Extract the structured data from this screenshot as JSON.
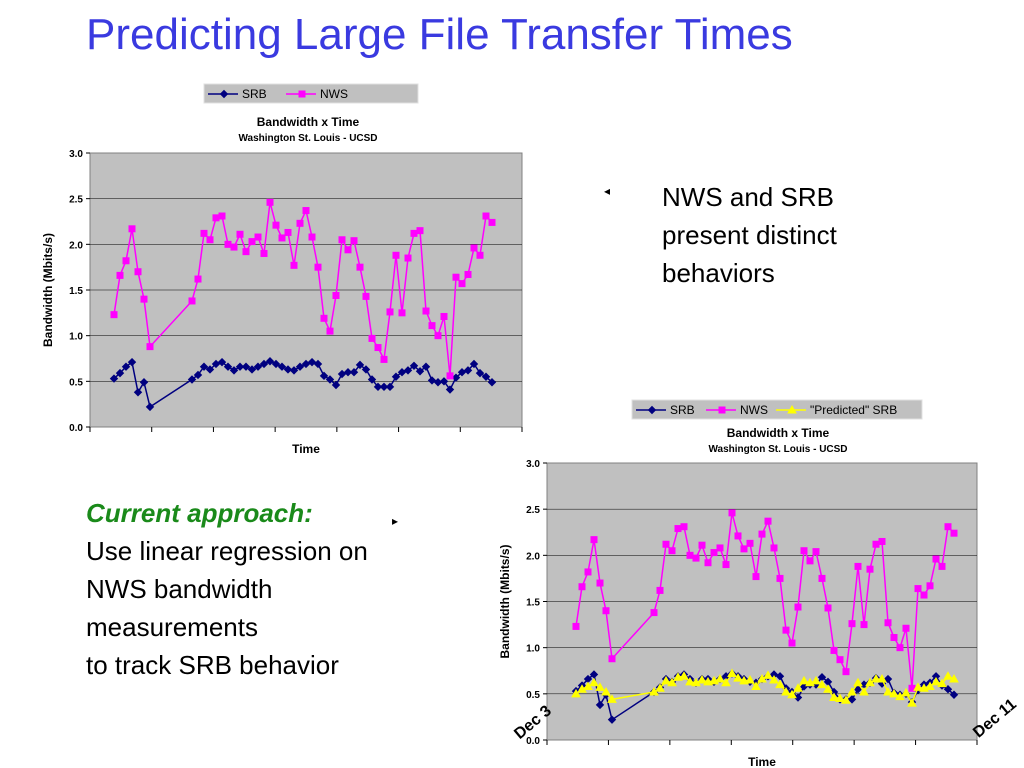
{
  "slide": {
    "title": "Predicting Large File Transfer Times",
    "right_bullet": "NWS and SRB present distinct behaviors",
    "current_approach_label": "Current approach:",
    "current_approach_lines": [
      "Use linear regression on",
      "NWS bandwidth",
      "measurements",
      "to track SRB behavior"
    ],
    "date_start": "Dec 3",
    "date_end": "Dec 11",
    "bullet_marker_right": "◂",
    "bullet_marker_left": "▸"
  },
  "colors": {
    "title": "#3a3ae0",
    "srb": "#000080",
    "nws": "#ff00ff",
    "predicted": "#ffff00",
    "plot_bg": "#c0c0c0",
    "heading_green": "#1a8a1a"
  },
  "chart_data": [
    {
      "type": "line",
      "title": "Bandwidth x Time",
      "subtitle": "Washington St. Louis - UCSD",
      "xlabel": "Time",
      "ylabel": "Bandwidth (Mbits/s)",
      "ylim": [
        0,
        3
      ],
      "yticks": [
        "0.0",
        "0.5",
        "1.0",
        "1.5",
        "2.0",
        "2.5",
        "3.0"
      ],
      "grid": true,
      "legend": "top",
      "series": [
        {
          "name": "SRB",
          "color": "#000080",
          "marker": "diamond",
          "x": [
            0,
            1,
            2,
            3,
            4,
            5,
            6,
            13,
            14,
            15,
            16,
            17,
            18,
            19,
            20,
            21,
            22,
            23,
            24,
            25,
            26,
            27,
            28,
            29,
            30,
            31,
            32,
            33,
            34,
            35,
            36,
            37,
            38,
            39,
            40,
            41,
            42,
            43,
            44,
            45,
            46,
            47,
            48,
            49,
            50,
            51,
            52,
            53,
            54,
            55,
            56,
            57,
            58,
            59,
            60,
            61,
            62,
            63
          ],
          "values": [
            0.53,
            0.59,
            0.66,
            0.71,
            0.38,
            0.49,
            0.22,
            0.52,
            0.57,
            0.66,
            0.63,
            0.69,
            0.71,
            0.66,
            0.62,
            0.66,
            0.66,
            0.63,
            0.66,
            0.69,
            0.72,
            0.69,
            0.66,
            0.63,
            0.62,
            0.66,
            0.69,
            0.71,
            0.69,
            0.56,
            0.52,
            0.46,
            0.58,
            0.6,
            0.6,
            0.68,
            0.63,
            0.52,
            0.44,
            0.44,
            0.44,
            0.55,
            0.6,
            0.62,
            0.67,
            0.61,
            0.66,
            0.51,
            0.49,
            0.5,
            0.41,
            0.54,
            0.6,
            0.62,
            0.69,
            0.59,
            0.55,
            0.49
          ]
        },
        {
          "name": "NWS",
          "color": "#ff00ff",
          "marker": "square",
          "x": [
            0,
            1,
            2,
            3,
            4,
            5,
            6,
            13,
            14,
            15,
            16,
            17,
            18,
            19,
            20,
            21,
            22,
            23,
            24,
            25,
            26,
            27,
            28,
            29,
            30,
            31,
            32,
            33,
            34,
            35,
            36,
            37,
            38,
            39,
            40,
            41,
            42,
            43,
            44,
            45,
            46,
            47,
            48,
            49,
            50,
            51,
            52,
            53,
            54,
            55,
            56,
            57,
            58,
            59,
            60,
            61,
            62,
            63
          ],
          "values": [
            1.23,
            1.66,
            1.82,
            2.17,
            1.7,
            1.4,
            0.88,
            1.38,
            1.62,
            2.12,
            2.05,
            2.29,
            2.31,
            2.0,
            1.97,
            2.11,
            1.92,
            2.03,
            2.08,
            1.9,
            2.46,
            2.21,
            2.07,
            2.13,
            1.77,
            2.23,
            2.37,
            2.08,
            1.75,
            1.19,
            1.05,
            1.44,
            2.05,
            1.94,
            2.04,
            1.75,
            1.43,
            0.97,
            0.87,
            0.74,
            1.26,
            1.88,
            1.25,
            1.85,
            2.12,
            2.15,
            1.27,
            1.11,
            1.0,
            1.21,
            0.56,
            1.64,
            1.57,
            1.67,
            1.96,
            1.88,
            2.31,
            2.24
          ]
        }
      ]
    },
    {
      "type": "line",
      "title": "Bandwidth x Time",
      "subtitle": "Washington St. Louis - UCSD",
      "xlabel": "Time",
      "ylabel": "Bandwidth (Mbits/s)",
      "ylim": [
        0,
        3
      ],
      "yticks": [
        "0.0",
        "0.5",
        "1.0",
        "1.5",
        "2.0",
        "2.5",
        "3.0"
      ],
      "grid": true,
      "legend": "top",
      "series": [
        {
          "name": "SRB",
          "color": "#000080",
          "marker": "diamond",
          "x": [
            0,
            1,
            2,
            3,
            4,
            5,
            6,
            13,
            14,
            15,
            16,
            17,
            18,
            19,
            20,
            21,
            22,
            23,
            24,
            25,
            26,
            27,
            28,
            29,
            30,
            31,
            32,
            33,
            34,
            35,
            36,
            37,
            38,
            39,
            40,
            41,
            42,
            43,
            44,
            45,
            46,
            47,
            48,
            49,
            50,
            51,
            52,
            53,
            54,
            55,
            56,
            57,
            58,
            59,
            60,
            61,
            62,
            63
          ],
          "values": [
            0.53,
            0.59,
            0.66,
            0.71,
            0.38,
            0.49,
            0.22,
            0.52,
            0.57,
            0.66,
            0.63,
            0.69,
            0.71,
            0.66,
            0.62,
            0.66,
            0.66,
            0.63,
            0.66,
            0.69,
            0.72,
            0.69,
            0.66,
            0.63,
            0.62,
            0.66,
            0.69,
            0.71,
            0.69,
            0.56,
            0.52,
            0.46,
            0.58,
            0.6,
            0.6,
            0.68,
            0.63,
            0.52,
            0.44,
            0.44,
            0.44,
            0.55,
            0.6,
            0.62,
            0.67,
            0.61,
            0.66,
            0.51,
            0.49,
            0.5,
            0.41,
            0.54,
            0.6,
            0.62,
            0.69,
            0.59,
            0.55,
            0.49
          ]
        },
        {
          "name": "NWS",
          "color": "#ff00ff",
          "marker": "square",
          "x": [
            0,
            1,
            2,
            3,
            4,
            5,
            6,
            13,
            14,
            15,
            16,
            17,
            18,
            19,
            20,
            21,
            22,
            23,
            24,
            25,
            26,
            27,
            28,
            29,
            30,
            31,
            32,
            33,
            34,
            35,
            36,
            37,
            38,
            39,
            40,
            41,
            42,
            43,
            44,
            45,
            46,
            47,
            48,
            49,
            50,
            51,
            52,
            53,
            54,
            55,
            56,
            57,
            58,
            59,
            60,
            61,
            62,
            63
          ],
          "values": [
            1.23,
            1.66,
            1.82,
            2.17,
            1.7,
            1.4,
            0.88,
            1.38,
            1.62,
            2.12,
            2.05,
            2.29,
            2.31,
            2.0,
            1.97,
            2.11,
            1.92,
            2.03,
            2.08,
            1.9,
            2.46,
            2.21,
            2.07,
            2.13,
            1.77,
            2.23,
            2.37,
            2.08,
            1.75,
            1.19,
            1.05,
            1.44,
            2.05,
            1.94,
            2.04,
            1.75,
            1.43,
            0.97,
            0.87,
            0.74,
            1.26,
            1.88,
            1.25,
            1.85,
            2.12,
            2.15,
            1.27,
            1.11,
            1.0,
            1.21,
            0.56,
            1.64,
            1.57,
            1.67,
            1.96,
            1.88,
            2.31,
            2.24
          ]
        },
        {
          "name": "\"Predicted\" SRB",
          "color": "#ffff00",
          "marker": "triangle",
          "x": [
            0,
            1,
            2,
            3,
            4,
            5,
            6,
            13,
            14,
            15,
            16,
            17,
            18,
            19,
            20,
            21,
            22,
            23,
            24,
            25,
            26,
            27,
            28,
            29,
            30,
            31,
            32,
            33,
            34,
            35,
            36,
            37,
            38,
            39,
            40,
            41,
            42,
            43,
            44,
            45,
            46,
            47,
            48,
            49,
            50,
            51,
            52,
            53,
            54,
            55,
            56,
            57,
            58,
            59,
            60,
            61,
            62,
            63
          ],
          "values": [
            0.5,
            0.55,
            0.58,
            0.62,
            0.57,
            0.52,
            0.44,
            0.52,
            0.56,
            0.64,
            0.62,
            0.68,
            0.69,
            0.63,
            0.62,
            0.65,
            0.63,
            0.64,
            0.66,
            0.62,
            0.72,
            0.67,
            0.64,
            0.65,
            0.58,
            0.66,
            0.7,
            0.65,
            0.6,
            0.52,
            0.49,
            0.56,
            0.64,
            0.62,
            0.64,
            0.6,
            0.55,
            0.46,
            0.45,
            0.43,
            0.52,
            0.62,
            0.52,
            0.62,
            0.66,
            0.66,
            0.52,
            0.5,
            0.47,
            0.51,
            0.4,
            0.57,
            0.56,
            0.58,
            0.63,
            0.61,
            0.69,
            0.66
          ]
        }
      ]
    }
  ]
}
